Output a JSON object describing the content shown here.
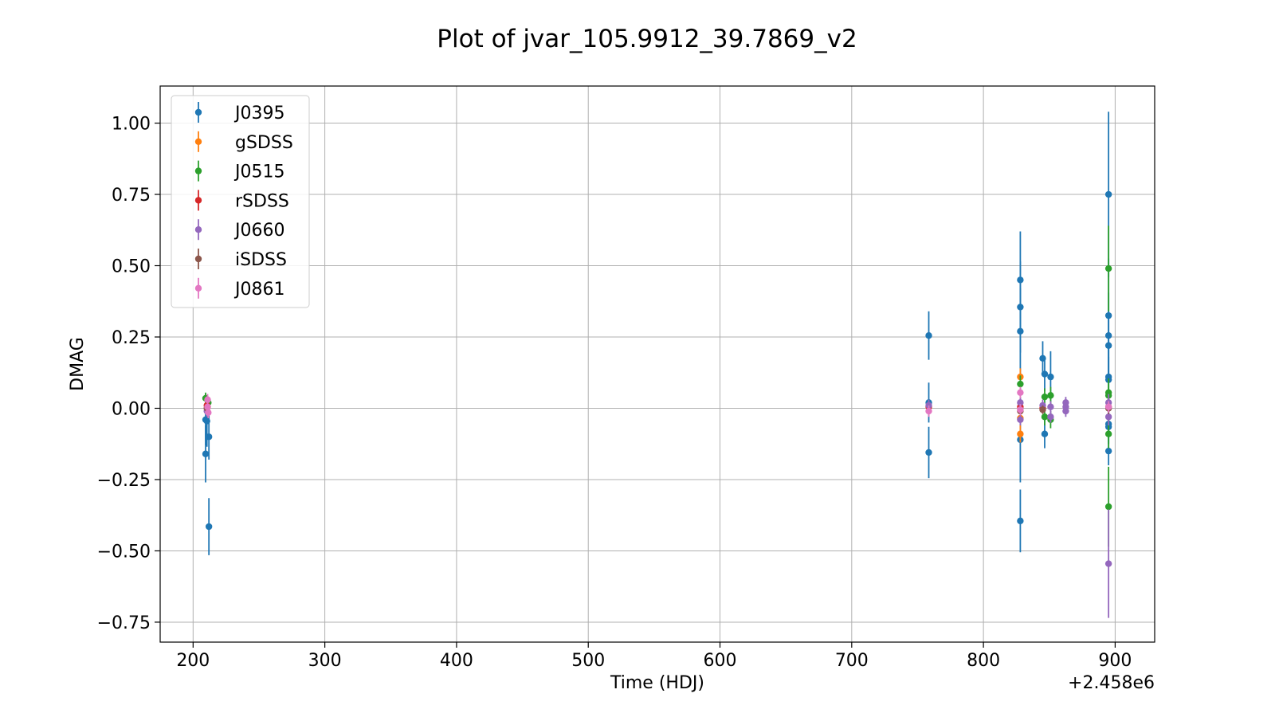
{
  "chart_data": {
    "type": "scatter",
    "title": "Plot of jvar_105.9912_39.7869_v2",
    "xlabel": "Time (HDJ)",
    "ylabel": "DMAG",
    "x_offset_label": "+2.458e6",
    "xlim": [
      175,
      930
    ],
    "ylim": [
      -0.82,
      1.13
    ],
    "xticks": [
      200,
      300,
      400,
      500,
      600,
      700,
      800,
      900
    ],
    "xtick_labels": [
      "200",
      "300",
      "400",
      "500",
      "600",
      "700",
      "800",
      "900"
    ],
    "yticks": [
      -0.75,
      -0.5,
      -0.25,
      0.0,
      0.25,
      0.5,
      0.75,
      1.0
    ],
    "ytick_labels": [
      "−0.75",
      "−0.50",
      "−0.25",
      "0.00",
      "0.25",
      "0.50",
      "0.75",
      "1.00"
    ],
    "grid": true,
    "legend_position": "top-left",
    "error_bars": true,
    "series": [
      {
        "name": "J0395",
        "color": "#1f77b4",
        "points": [
          {
            "x": 2458209.5,
            "y": -0.04,
            "err": 0.09
          },
          {
            "x": 2458209.5,
            "y": -0.16,
            "err": 0.1
          },
          {
            "x": 2458210.5,
            "y": -0.045,
            "err": 0.09
          },
          {
            "x": 2458212.0,
            "y": -0.1,
            "err": 0.08
          },
          {
            "x": 2458212.0,
            "y": -0.415,
            "err": 0.1
          },
          {
            "x": 2458758.5,
            "y": 0.255,
            "err": 0.085
          },
          {
            "x": 2458758.5,
            "y": 0.02,
            "err": 0.07
          },
          {
            "x": 2458758.5,
            "y": -0.155,
            "err": 0.09
          },
          {
            "x": 2458828.0,
            "y": 0.45,
            "err": 0.17
          },
          {
            "x": 2458828.0,
            "y": 0.355,
            "err": 0.16
          },
          {
            "x": 2458828.0,
            "y": 0.27,
            "err": 0.15
          },
          {
            "x": 2458828.0,
            "y": -0.11,
            "err": 0.15
          },
          {
            "x": 2458828.0,
            "y": -0.395,
            "err": 0.11
          },
          {
            "x": 2458845.0,
            "y": 0.175,
            "err": 0.06
          },
          {
            "x": 2458846.5,
            "y": 0.12,
            "err": 0.06
          },
          {
            "x": 2458846.5,
            "y": -0.09,
            "err": 0.05
          },
          {
            "x": 2458851.0,
            "y": 0.11,
            "err": 0.09
          },
          {
            "x": 2458895.0,
            "y": 0.75,
            "err": 0.29
          },
          {
            "x": 2458895.0,
            "y": 0.325,
            "err": 0.2
          },
          {
            "x": 2458895.0,
            "y": 0.255,
            "err": 0.15
          },
          {
            "x": 2458895.0,
            "y": 0.22,
            "err": 0.12
          },
          {
            "x": 2458895.0,
            "y": 0.11,
            "err": 0.1
          },
          {
            "x": 2458895.0,
            "y": 0.1,
            "err": 0.08
          },
          {
            "x": 2458895.0,
            "y": -0.055,
            "err": 0.07
          },
          {
            "x": 2458895.0,
            "y": -0.065,
            "err": 0.06
          },
          {
            "x": 2458895.0,
            "y": -0.15,
            "err": 0.05
          }
        ]
      },
      {
        "name": "gSDSS",
        "color": "#ff7f0e",
        "points": [
          {
            "x": 2458211.0,
            "y": 0.005,
            "err": 0.02
          },
          {
            "x": 2458828.0,
            "y": 0.11,
            "err": 0.03
          },
          {
            "x": 2458828.0,
            "y": -0.09,
            "err": 0.03
          },
          {
            "x": 2458828.0,
            "y": -0.035,
            "err": 0.02
          }
        ]
      },
      {
        "name": "J0515",
        "color": "#2ca02c",
        "points": [
          {
            "x": 2458209.5,
            "y": 0.035,
            "err": 0.02
          },
          {
            "x": 2458211.5,
            "y": 0.02,
            "err": 0.02
          },
          {
            "x": 2458828.0,
            "y": 0.085,
            "err": 0.03
          },
          {
            "x": 2458846.5,
            "y": 0.04,
            "err": 0.03
          },
          {
            "x": 2458846.5,
            "y": -0.03,
            "err": 0.03
          },
          {
            "x": 2458851.0,
            "y": 0.045,
            "err": 0.03
          },
          {
            "x": 2458851.0,
            "y": -0.04,
            "err": 0.03
          },
          {
            "x": 2458895.0,
            "y": 0.49,
            "err": 0.15
          },
          {
            "x": 2458895.0,
            "y": 0.055,
            "err": 0.05
          },
          {
            "x": 2458895.0,
            "y": 0.045,
            "err": 0.04
          },
          {
            "x": 2458895.0,
            "y": -0.09,
            "err": 0.05
          },
          {
            "x": 2458895.0,
            "y": -0.345,
            "err": 0.14
          }
        ]
      },
      {
        "name": "rSDSS",
        "color": "#d62728",
        "points": [
          {
            "x": 2458210.5,
            "y": 0.01,
            "err": 0.015
          },
          {
            "x": 2458758.5,
            "y": 0.005,
            "err": 0.015
          },
          {
            "x": 2458828.0,
            "y": 0.005,
            "err": 0.015
          },
          {
            "x": 2458845.0,
            "y": 0.0,
            "err": 0.015
          },
          {
            "x": 2458895.0,
            "y": 0.005,
            "err": 0.02
          }
        ]
      },
      {
        "name": "J0660",
        "color": "#9467bd",
        "points": [
          {
            "x": 2458210.5,
            "y": -0.01,
            "err": 0.02
          },
          {
            "x": 2458758.5,
            "y": 0.01,
            "err": 0.02
          },
          {
            "x": 2458828.0,
            "y": 0.02,
            "err": 0.02
          },
          {
            "x": 2458828.0,
            "y": -0.04,
            "err": 0.02
          },
          {
            "x": 2458845.0,
            "y": 0.01,
            "err": 0.02
          },
          {
            "x": 2458851.0,
            "y": -0.03,
            "err": 0.02
          },
          {
            "x": 2458851.0,
            "y": 0.005,
            "err": 0.02
          },
          {
            "x": 2458862.5,
            "y": 0.02,
            "err": 0.02
          },
          {
            "x": 2458862.5,
            "y": 0.005,
            "err": 0.02
          },
          {
            "x": 2458862.5,
            "y": -0.01,
            "err": 0.02
          },
          {
            "x": 2458895.0,
            "y": 0.02,
            "err": 0.03
          },
          {
            "x": 2458895.0,
            "y": -0.03,
            "err": 0.03
          },
          {
            "x": 2458895.0,
            "y": -0.545,
            "err": 0.19
          }
        ]
      },
      {
        "name": "iSDSS",
        "color": "#8c564b",
        "points": [
          {
            "x": 2458210.5,
            "y": 0.0,
            "err": 0.015
          },
          {
            "x": 2458828.0,
            "y": -0.01,
            "err": 0.015
          },
          {
            "x": 2458845.0,
            "y": -0.005,
            "err": 0.015
          },
          {
            "x": 2458895.0,
            "y": 0.0,
            "err": 0.02
          }
        ]
      },
      {
        "name": "J0861",
        "color": "#e377c2",
        "points": [
          {
            "x": 2458211.0,
            "y": 0.03,
            "err": 0.02
          },
          {
            "x": 2458211.0,
            "y": 0.005,
            "err": 0.02
          },
          {
            "x": 2458211.5,
            "y": -0.015,
            "err": 0.02
          },
          {
            "x": 2458758.5,
            "y": -0.01,
            "err": 0.02
          },
          {
            "x": 2458828.0,
            "y": 0.055,
            "err": 0.02
          },
          {
            "x": 2458828.0,
            "y": -0.005,
            "err": 0.02
          },
          {
            "x": 2458895.0,
            "y": 0.005,
            "err": 0.02
          }
        ]
      }
    ]
  }
}
